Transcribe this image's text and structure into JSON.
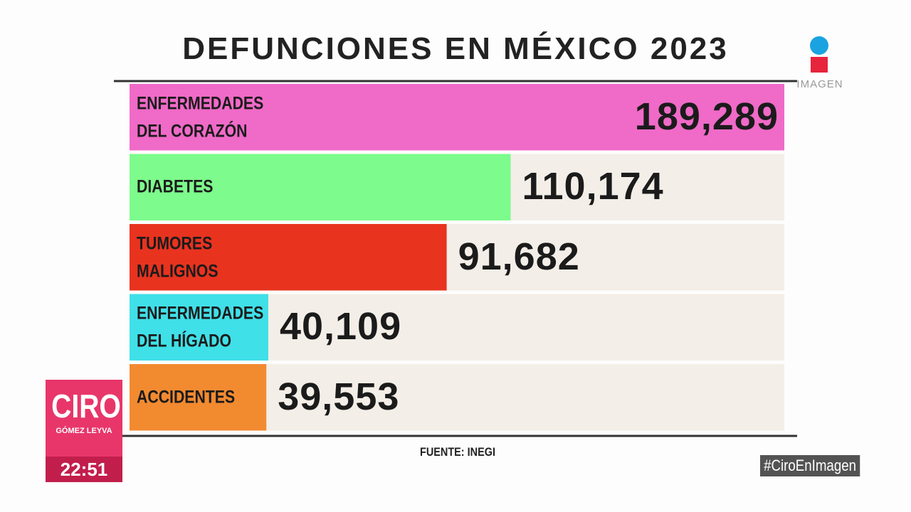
{
  "chart_data": {
    "type": "bar",
    "orientation": "horizontal",
    "title": "DEFUNCIONES EN MÉXICO 2023",
    "categories": [
      "ENFERMEDADES DEL CORAZÓN",
      "DIABETES",
      "TUMORES MALIGNOS",
      "ENFERMEDADES DEL HÍGADO",
      "ACCIDENTES"
    ],
    "values": [
      189289,
      110174,
      91682,
      40109,
      39553
    ],
    "value_labels": [
      "189,289",
      "110,174",
      "91,682",
      "40,109",
      "39,553"
    ],
    "colors": [
      "#f06ac8",
      "#7dfb8c",
      "#e8331f",
      "#40e0e8",
      "#f28a30"
    ],
    "source": "FUENTE: INEGI"
  },
  "broadcast": {
    "channel": "IMAGEN",
    "show": "CIRO",
    "host": "GÓMEZ LEYVA",
    "time": "22:51",
    "hashtag": "#CiroEnImagen"
  }
}
